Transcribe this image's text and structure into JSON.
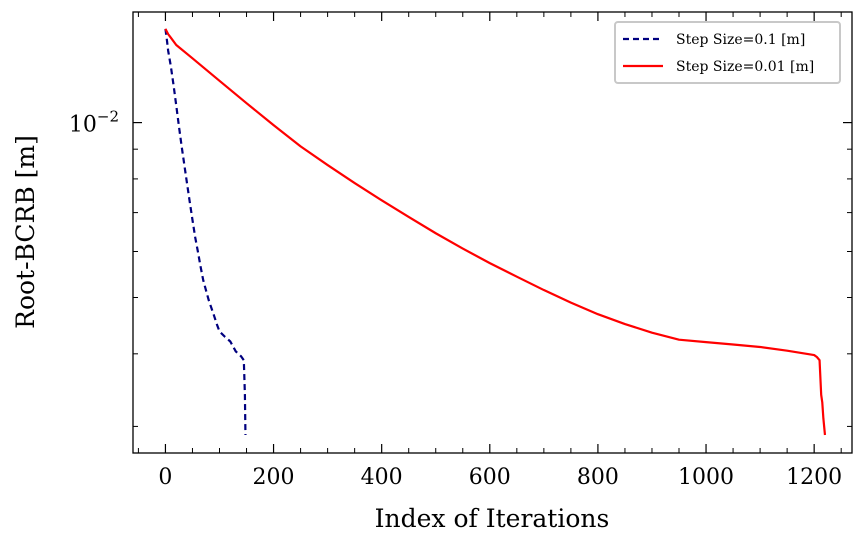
{
  "chart_data": {
    "type": "line",
    "xlabel": "Index of Iterations",
    "ylabel": "Root-BCRB [m]",
    "xlim": [
      -60,
      1270
    ],
    "ylim": [
      0.0027,
      0.0155
    ],
    "yscale": "log",
    "x_ticks": [
      {
        "value": 0,
        "label": "0"
      },
      {
        "value": 200,
        "label": "200"
      },
      {
        "value": 400,
        "label": "400"
      },
      {
        "value": 600,
        "label": "600"
      },
      {
        "value": 800,
        "label": "800"
      },
      {
        "value": 1000,
        "label": "1000"
      },
      {
        "value": 1200,
        "label": "1200"
      }
    ],
    "y_ticks": [
      {
        "value": 0.01,
        "label_base": "10",
        "label_exp": "−2"
      }
    ],
    "grid": false,
    "legend_position": "top-right",
    "series": [
      {
        "name": "Step Size=0.1 [m]",
        "color": "#00007f",
        "style": "dashed",
        "x": [
          0,
          3,
          5,
          10,
          15,
          20,
          25,
          30,
          35,
          40,
          45,
          50,
          55,
          60,
          65,
          70,
          80,
          90,
          95,
          100,
          110,
          120,
          125,
          130,
          140,
          145,
          147,
          148
        ],
        "y": [
          0.0145,
          0.0138,
          0.0133,
          0.0125,
          0.0116,
          0.0107,
          0.00985,
          0.0091,
          0.00845,
          0.00785,
          0.0073,
          0.0068,
          0.00635,
          0.006,
          0.00565,
          0.00535,
          0.00495,
          0.00465,
          0.0045,
          0.00437,
          0.00428,
          0.0042,
          0.00412,
          0.00404,
          0.00396,
          0.0039,
          0.0034,
          0.0029
        ]
      },
      {
        "name": "Step Size=0.01 [m]",
        "color": "#ff0000",
        "style": "solid",
        "x": [
          0,
          5,
          10,
          20,
          50,
          100,
          150,
          200,
          250,
          300,
          350,
          400,
          450,
          500,
          550,
          600,
          650,
          700,
          750,
          800,
          850,
          900,
          950,
          1000,
          1050,
          1100,
          1150,
          1200,
          1205,
          1210,
          1213,
          1215,
          1217,
          1220
        ],
        "y": [
          0.0145,
          0.0142,
          0.014,
          0.0136,
          0.0129,
          0.0118,
          0.0108,
          0.0099,
          0.0091,
          0.00845,
          0.00787,
          0.00735,
          0.00688,
          0.00645,
          0.00607,
          0.00573,
          0.00543,
          0.00515,
          0.0049,
          0.00468,
          0.0045,
          0.00435,
          0.00423,
          0.00419,
          0.00415,
          0.00411,
          0.00405,
          0.00398,
          0.00395,
          0.0039,
          0.0034,
          0.0033,
          0.0031,
          0.0029
        ]
      }
    ]
  }
}
